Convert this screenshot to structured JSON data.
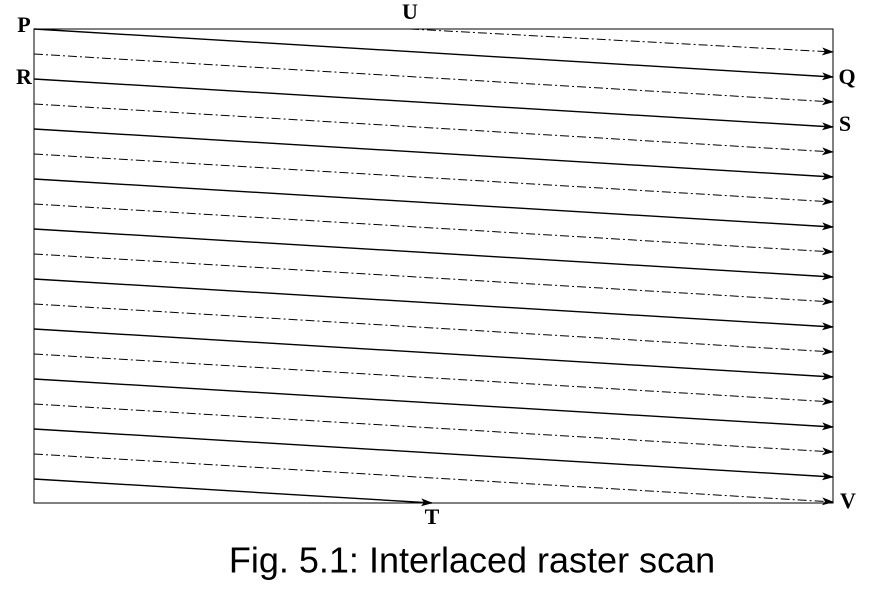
{
  "labels": {
    "p": "P",
    "q": "Q",
    "r": "R",
    "s": "S",
    "t": "T",
    "u": "U",
    "v": "V"
  },
  "caption": "Fig. 5.1: Interlaced raster scan"
}
